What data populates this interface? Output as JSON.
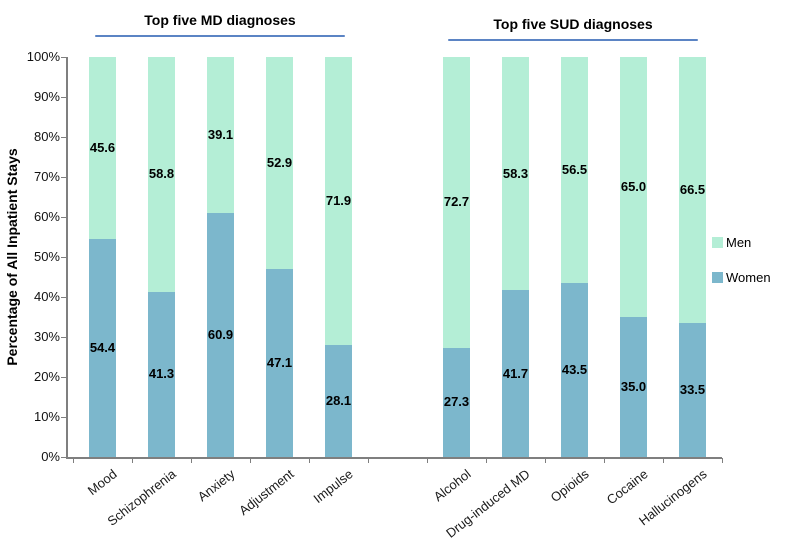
{
  "chart_data": {
    "type": "bar",
    "subtype": "stacked-100-percent",
    "title": "",
    "ylabel": "Percentage of All Inpatient Stays",
    "xlabel": "",
    "ylim": [
      0,
      100
    ],
    "ytick_step": 10,
    "yticks": [
      "0%",
      "10%",
      "20%",
      "30%",
      "40%",
      "50%",
      "60%",
      "70%",
      "80%",
      "90%",
      "100%"
    ],
    "grid": "off",
    "legend_position": "right",
    "legend": [
      {
        "name": "Men",
        "color": "#b4eed6"
      },
      {
        "name": "Women",
        "color": "#7cb7cc"
      }
    ],
    "groups": [
      {
        "header": "Top five MD diagnoses",
        "categories": [
          "Mood",
          "Schizophrenia",
          "Anxiety",
          "Adjustment",
          "Impulse"
        ],
        "series": [
          {
            "name": "Women",
            "values": [
              54.4,
              41.3,
              60.9,
              47.1,
              28.1
            ]
          },
          {
            "name": "Men",
            "values": [
              45.6,
              58.8,
              39.1,
              52.9,
              71.9
            ]
          }
        ]
      },
      {
        "header": "Top five SUD diagnoses",
        "categories": [
          "Alcohol",
          "Drug-induced MD",
          "Opioids",
          "Cocaine",
          "Hallucinogens"
        ],
        "series": [
          {
            "name": "Women",
            "values": [
              27.3,
              41.7,
              43.5,
              35.0,
              33.5
            ]
          },
          {
            "name": "Men",
            "values": [
              72.7,
              58.3,
              56.5,
              65.0,
              66.5
            ]
          }
        ]
      }
    ],
    "colors": {
      "men_fill": "#b4eed6",
      "women_fill": "#7cb7cc",
      "header_underline": "#5b84c4",
      "axis": "#7f7f7f",
      "label_text": "#000000"
    },
    "value_label_decimals": 1
  }
}
